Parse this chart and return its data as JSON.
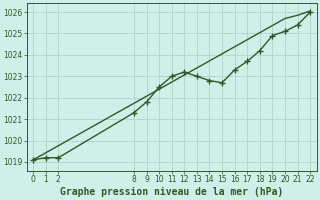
{
  "title": "Graphe pression niveau de la mer (hPa)",
  "bg_color": "#cff0e8",
  "grid_color": "#b0d8d0",
  "line_color": "#2d5a27",
  "x_all": [
    0,
    1,
    2,
    3,
    4,
    5,
    6,
    7,
    8,
    9,
    10,
    11,
    12,
    13,
    14,
    15,
    16,
    17,
    18,
    19,
    20,
    21,
    22
  ],
  "y_trend": [
    1019.1,
    1019.43,
    1019.76,
    1020.09,
    1020.42,
    1020.75,
    1021.08,
    1021.41,
    1021.74,
    1022.07,
    1022.4,
    1022.73,
    1023.06,
    1023.39,
    1023.72,
    1024.05,
    1024.38,
    1024.71,
    1025.04,
    1025.37,
    1025.7,
    1025.85,
    1026.05
  ],
  "x_data": [
    0,
    1,
    2,
    8,
    9,
    10,
    11,
    12,
    13,
    14,
    15,
    16,
    17,
    18,
    19,
    20,
    21,
    22
  ],
  "y_data": [
    1019.1,
    1019.2,
    1019.2,
    1021.3,
    1021.8,
    1022.5,
    1023.0,
    1023.2,
    1023.0,
    1022.8,
    1022.7,
    1023.3,
    1023.7,
    1024.2,
    1024.9,
    1025.1,
    1025.4,
    1026.0
  ],
  "ylim": [
    1018.6,
    1026.4
  ],
  "yticks": [
    1019,
    1020,
    1021,
    1022,
    1023,
    1024,
    1025,
    1026
  ],
  "xticks": [
    0,
    1,
    2,
    8,
    9,
    10,
    11,
    12,
    13,
    14,
    15,
    16,
    17,
    18,
    19,
    20,
    21,
    22
  ],
  "marker": "+",
  "markersize": 4,
  "linewidth": 1.0,
  "title_fontsize": 7.0,
  "tick_fontsize": 5.5
}
